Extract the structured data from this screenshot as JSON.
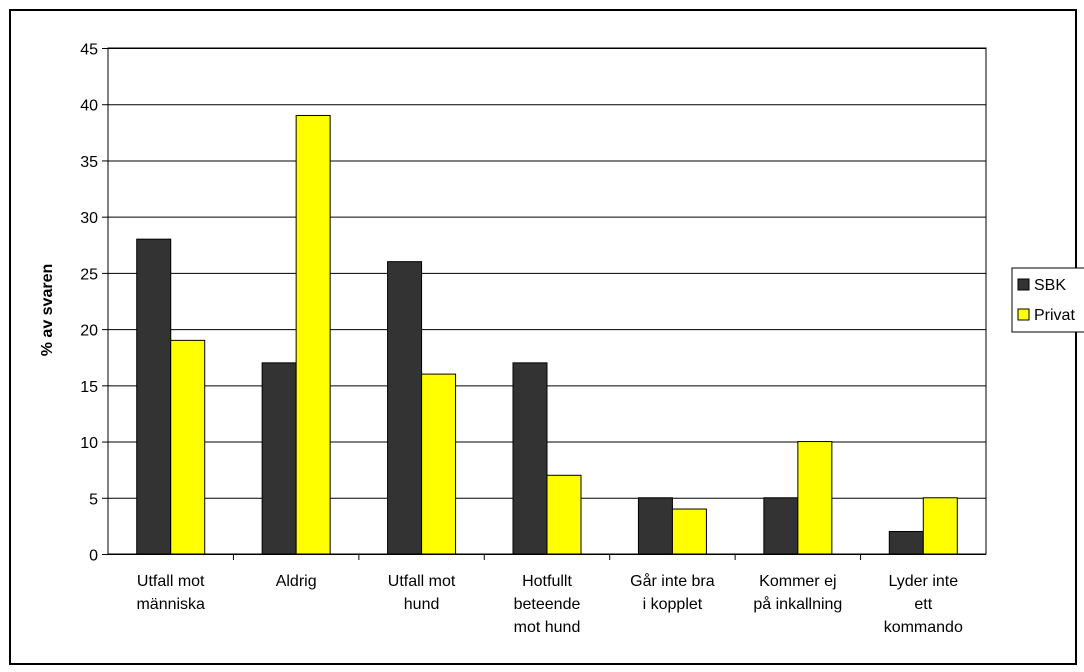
{
  "chart_data": {
    "type": "bar",
    "title": "",
    "xlabel": "",
    "ylabel": "% av svaren",
    "ylim": [
      0,
      45
    ],
    "yticks": [
      0,
      5,
      10,
      15,
      20,
      25,
      30,
      35,
      40,
      45
    ],
    "grid": true,
    "legend_position": "right",
    "categories": [
      [
        "Utfall mot",
        "människa"
      ],
      [
        "Aldrig"
      ],
      [
        "Utfall mot",
        "hund"
      ],
      [
        "Hotfullt",
        "beteende",
        "mot hund"
      ],
      [
        "Går inte bra",
        "i kopplet"
      ],
      [
        "Kommer ej",
        "på inkallning"
      ],
      [
        "Lyder inte",
        "ett",
        "kommando"
      ]
    ],
    "series": [
      {
        "name": "SBK",
        "color": "#333333",
        "values": [
          28,
          17,
          26,
          17,
          5,
          5,
          2
        ]
      },
      {
        "name": "Privat",
        "color": "#ffff00",
        "values": [
          19,
          39,
          16,
          7,
          4,
          10,
          5
        ]
      }
    ]
  }
}
